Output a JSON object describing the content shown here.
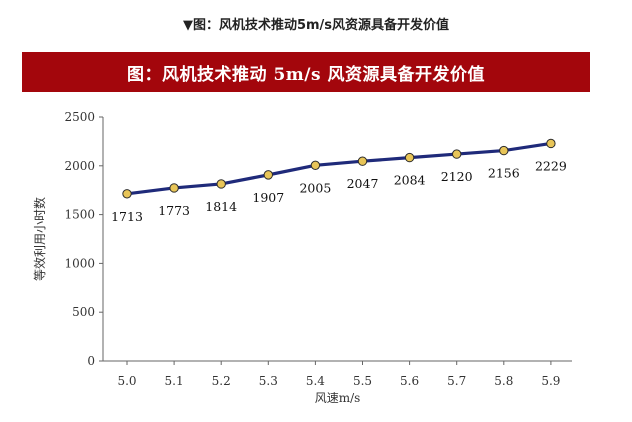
{
  "caption": "▼图：风机技术推动5m/s风资源具备开发价值",
  "banner_title": "图：风机技术推动 5m/s 风资源具备开发价值",
  "chart_data": {
    "type": "line",
    "title": "图：风机技术推动 5m/s 风资源具备开发价值",
    "xlabel": "风速m/s",
    "ylabel": "等效利用小时数",
    "categories": [
      "5.0",
      "5.1",
      "5.2",
      "5.3",
      "5.4",
      "5.5",
      "5.6",
      "5.7",
      "5.8",
      "5.9"
    ],
    "values": [
      1713,
      1773,
      1814,
      1907,
      2005,
      2047,
      2084,
      2120,
      2156,
      2229
    ],
    "ylim": [
      0,
      2500
    ],
    "yticks": [
      "0",
      "500",
      "1000",
      "1500",
      "2000",
      "2500"
    ],
    "grid": false,
    "colors": {
      "line": "#1f2a7a",
      "marker": "#e8c558",
      "marker_edge": "#2b2b2b",
      "banner": "#a3060c"
    }
  }
}
